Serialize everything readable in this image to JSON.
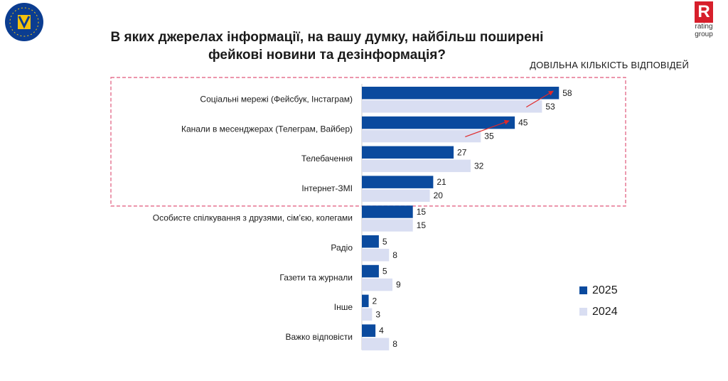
{
  "title_line1": "В яких джерелах інформації, на вашу думку, найбільш поширені",
  "title_line2": "фейкові новини та дезінформація?",
  "note": "ДОВІЛЬНА КІЛЬКІСТЬ ВІДПОВІДЕЙ",
  "logos": {
    "eu_text": "EUROPEAN UNION · EUAM UKRAINE",
    "rating_r": "R",
    "rating_line1": "rating",
    "rating_line2": "group"
  },
  "colors": {
    "series_2025": "#0a4a9e",
    "series_2024": "#d9def2",
    "highlight_box": "#e0577a",
    "arrow": "#e02828"
  },
  "chart_data": {
    "type": "bar",
    "orientation": "horizontal",
    "categories": [
      "Соціальні мережі (Фейсбук, Інстаграм)",
      "Канали в месенджерах (Телеграм, Вайбер)",
      "Телебачення",
      "Інтернет-ЗМІ",
      "Особисте спілкування з друзями, сім’єю, колегами",
      "Радіо",
      "Газети та журнали",
      "Інше",
      "Важко відповісти"
    ],
    "series": [
      {
        "name": "2025",
        "values": [
          58,
          45,
          27,
          21,
          15,
          5,
          5,
          2,
          4
        ]
      },
      {
        "name": "2024",
        "values": [
          53,
          35,
          32,
          20,
          15,
          8,
          9,
          3,
          8
        ]
      }
    ],
    "legend_position": "right",
    "highlighted_categories": [
      0,
      1,
      2,
      3
    ],
    "increase_arrows_on": [
      0,
      1
    ],
    "grid": false
  }
}
